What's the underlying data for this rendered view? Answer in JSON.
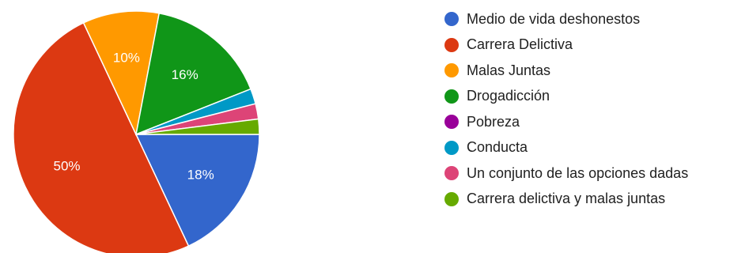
{
  "chart_data": {
    "type": "pie",
    "title": "",
    "legend_position": "right",
    "slices": [
      {
        "label": "Medio de vida deshonestos",
        "value": 18,
        "display": "18%",
        "color": "#3366cc"
      },
      {
        "label": "Carrera Delictiva",
        "value": 50,
        "display": "50%",
        "color": "#dc3912"
      },
      {
        "label": "Malas Juntas",
        "value": 10,
        "display": "10%",
        "color": "#ff9900"
      },
      {
        "label": "Drogadicción",
        "value": 16,
        "display": "16%",
        "color": "#109618"
      },
      {
        "label": "Pobreza",
        "value": 0,
        "display": "",
        "color": "#990099"
      },
      {
        "label": "Conducta",
        "value": 2,
        "display": "",
        "color": "#0099c6"
      },
      {
        "label": "Un conjunto de las opciones dadas",
        "value": 2,
        "display": "",
        "color": "#dd4477"
      },
      {
        "label": "Carrera delictiva y malas juntas",
        "value": 2,
        "display": "",
        "color": "#66aa00"
      }
    ]
  }
}
